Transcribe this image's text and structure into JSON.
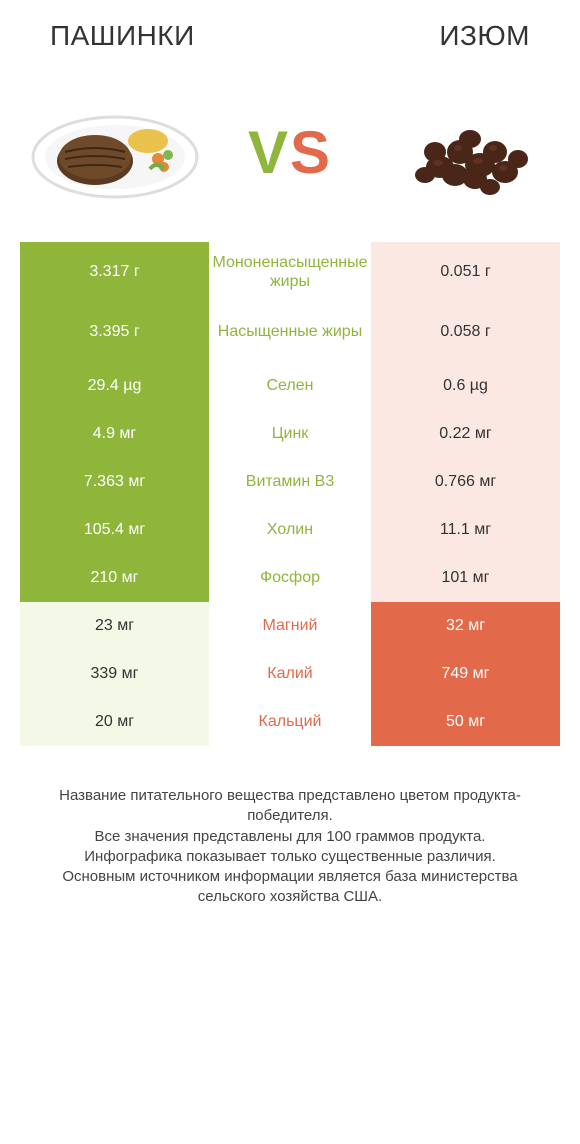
{
  "header": {
    "left_title": "ПАШИНКИ",
    "right_title": "ИЗЮМ"
  },
  "vs": {
    "v": "V",
    "s": "S"
  },
  "colors": {
    "green_win": "#8fb63b",
    "green_lose": "#f3f8e7",
    "orange_win": "#e26a4a",
    "orange_lose": "#fbe8e2",
    "background": "#ffffff",
    "text": "#333333"
  },
  "table": {
    "rows": [
      {
        "left": "3.317 г",
        "label": "Мононенасыщенные жиры",
        "right": "0.051 г",
        "winner": "left",
        "tall": true
      },
      {
        "left": "3.395 г",
        "label": "Насыщенные жиры",
        "right": "0.058 г",
        "winner": "left",
        "tall": true
      },
      {
        "left": "29.4 µg",
        "label": "Селен",
        "right": "0.6 µg",
        "winner": "left",
        "tall": false
      },
      {
        "left": "4.9 мг",
        "label": "Цинк",
        "right": "0.22 мг",
        "winner": "left",
        "tall": false
      },
      {
        "left": "7.363 мг",
        "label": "Витамин B3",
        "right": "0.766 мг",
        "winner": "left",
        "tall": false
      },
      {
        "left": "105.4 мг",
        "label": "Холин",
        "right": "11.1 мг",
        "winner": "left",
        "tall": false
      },
      {
        "left": "210 мг",
        "label": "Фосфор",
        "right": "101 мг",
        "winner": "left",
        "tall": false
      },
      {
        "left": "23 мг",
        "label": "Магний",
        "right": "32 мг",
        "winner": "right",
        "tall": false
      },
      {
        "left": "339 мг",
        "label": "Калий",
        "right": "749 мг",
        "winner": "right",
        "tall": false
      },
      {
        "left": "20 мг",
        "label": "Кальций",
        "right": "50 мг",
        "winner": "right",
        "tall": false
      }
    ]
  },
  "footer": {
    "line1": "Название питательного вещества представлено цветом продукта-победителя.",
    "line2": "Все значения представлены для 100 граммов продукта.",
    "line3": "Инфографика показывает только существенные различия.",
    "line4": "Основным источником информации является база министерства сельского хозяйства США."
  },
  "typography": {
    "header_fontsize": 28,
    "vs_fontsize": 60,
    "cell_fontsize": 16,
    "footer_fontsize": 15
  }
}
